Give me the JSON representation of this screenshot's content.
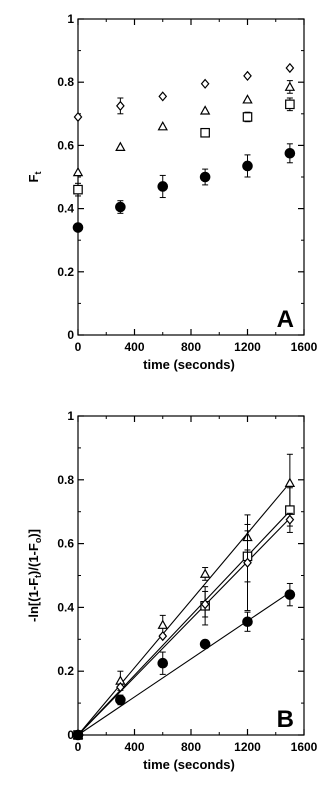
{
  "chart_data": [
    {
      "type": "scatter",
      "panel_label": "A",
      "title": "",
      "xlabel": "time (seconds)",
      "ylabel": "F",
      "ylabel_sub": "t",
      "xlim": [
        0,
        1600
      ],
      "ylim": [
        0,
        1
      ],
      "xticks": [
        0,
        400,
        800,
        1200,
        1600
      ],
      "yticks": [
        0,
        0.2,
        0.4,
        0.6,
        0.8,
        1
      ],
      "xtick_labels": [
        "0",
        "400",
        "800",
        "1200",
        "1600"
      ],
      "ytick_labels": [
        "0",
        "0.2",
        "0.4",
        "0.6",
        "0.8",
        "1"
      ],
      "grid": false,
      "series": [
        {
          "marker": "diamond-open",
          "x": [
            0,
            300,
            600,
            900,
            1200,
            1500
          ],
          "y": [
            0.69,
            0.725,
            0.755,
            0.795,
            0.82,
            0.845
          ],
          "err": [
            0,
            0.025,
            0,
            0,
            0,
            0
          ]
        },
        {
          "marker": "triangle-open",
          "x": [
            0,
            300,
            600,
            900,
            1200,
            1500
          ],
          "y": [
            0.515,
            0.595,
            0.66,
            0.71,
            0.745,
            0.785
          ],
          "err": [
            0,
            0,
            0,
            0,
            0,
            0.02
          ]
        },
        {
          "marker": "square-open",
          "x": [
            0,
            900,
            1200,
            1500
          ],
          "y": [
            0.46,
            0.64,
            0.69,
            0.73
          ],
          "err": [
            0.02,
            0,
            0.015,
            0.02
          ]
        },
        {
          "marker": "circle-filled",
          "x": [
            0,
            300,
            600,
            900,
            1200,
            1500
          ],
          "y": [
            0.34,
            0.405,
            0.47,
            0.5,
            0.535,
            0.575
          ],
          "err": [
            0,
            0.02,
            0.035,
            0.025,
            0.035,
            0.03
          ]
        }
      ]
    },
    {
      "type": "scatter",
      "panel_label": "B",
      "title": "",
      "xlabel": "time (seconds)",
      "ylabel_parts": [
        "-ln[(1-F",
        "t",
        ")/(1-F",
        "o",
        ")]"
      ],
      "xlim": [
        0,
        1600
      ],
      "ylim": [
        0,
        1
      ],
      "xticks": [
        0,
        400,
        800,
        1200,
        1600
      ],
      "yticks": [
        0,
        0.2,
        0.4,
        0.6,
        0.8,
        1
      ],
      "xtick_labels": [
        "0",
        "400",
        "800",
        "1200",
        "1600"
      ],
      "ytick_labels": [
        "0",
        "0.2",
        "0.4",
        "0.6",
        "0.8",
        "1"
      ],
      "grid": false,
      "series": [
        {
          "marker": "triangle-open",
          "fit_slope": 0.000527,
          "x": [
            0,
            300,
            600,
            900,
            1200,
            1500
          ],
          "y": [
            0,
            0.17,
            0.345,
            0.505,
            0.62,
            0.79
          ],
          "err": [
            0,
            0.03,
            0.03,
            0.02,
            0.04,
            0.09
          ]
        },
        {
          "marker": "square-open",
          "fit_slope": 0.000468,
          "x": [
            0,
            900,
            1200,
            1500
          ],
          "y": [
            0,
            0.405,
            0.56,
            0.705
          ],
          "err": [
            0,
            0.06,
            0.08,
            0.07
          ]
        },
        {
          "marker": "diamond-open",
          "fit_slope": 0.000453,
          "x": [
            0,
            300,
            600,
            900,
            1200,
            1500
          ],
          "y": [
            0,
            0.15,
            0.31,
            0.41,
            0.54,
            0.675
          ],
          "err": [
            0,
            0,
            0,
            0.04,
            0.15,
            0.02
          ]
        },
        {
          "marker": "circle-filled",
          "fit_slope": 0.000298,
          "x": [
            0,
            300,
            600,
            900,
            1200,
            1500
          ],
          "y": [
            0,
            0.11,
            0.225,
            0.285,
            0.355,
            0.44
          ],
          "err": [
            0,
            0.015,
            0.035,
            0,
            0.03,
            0.035
          ]
        }
      ]
    }
  ]
}
